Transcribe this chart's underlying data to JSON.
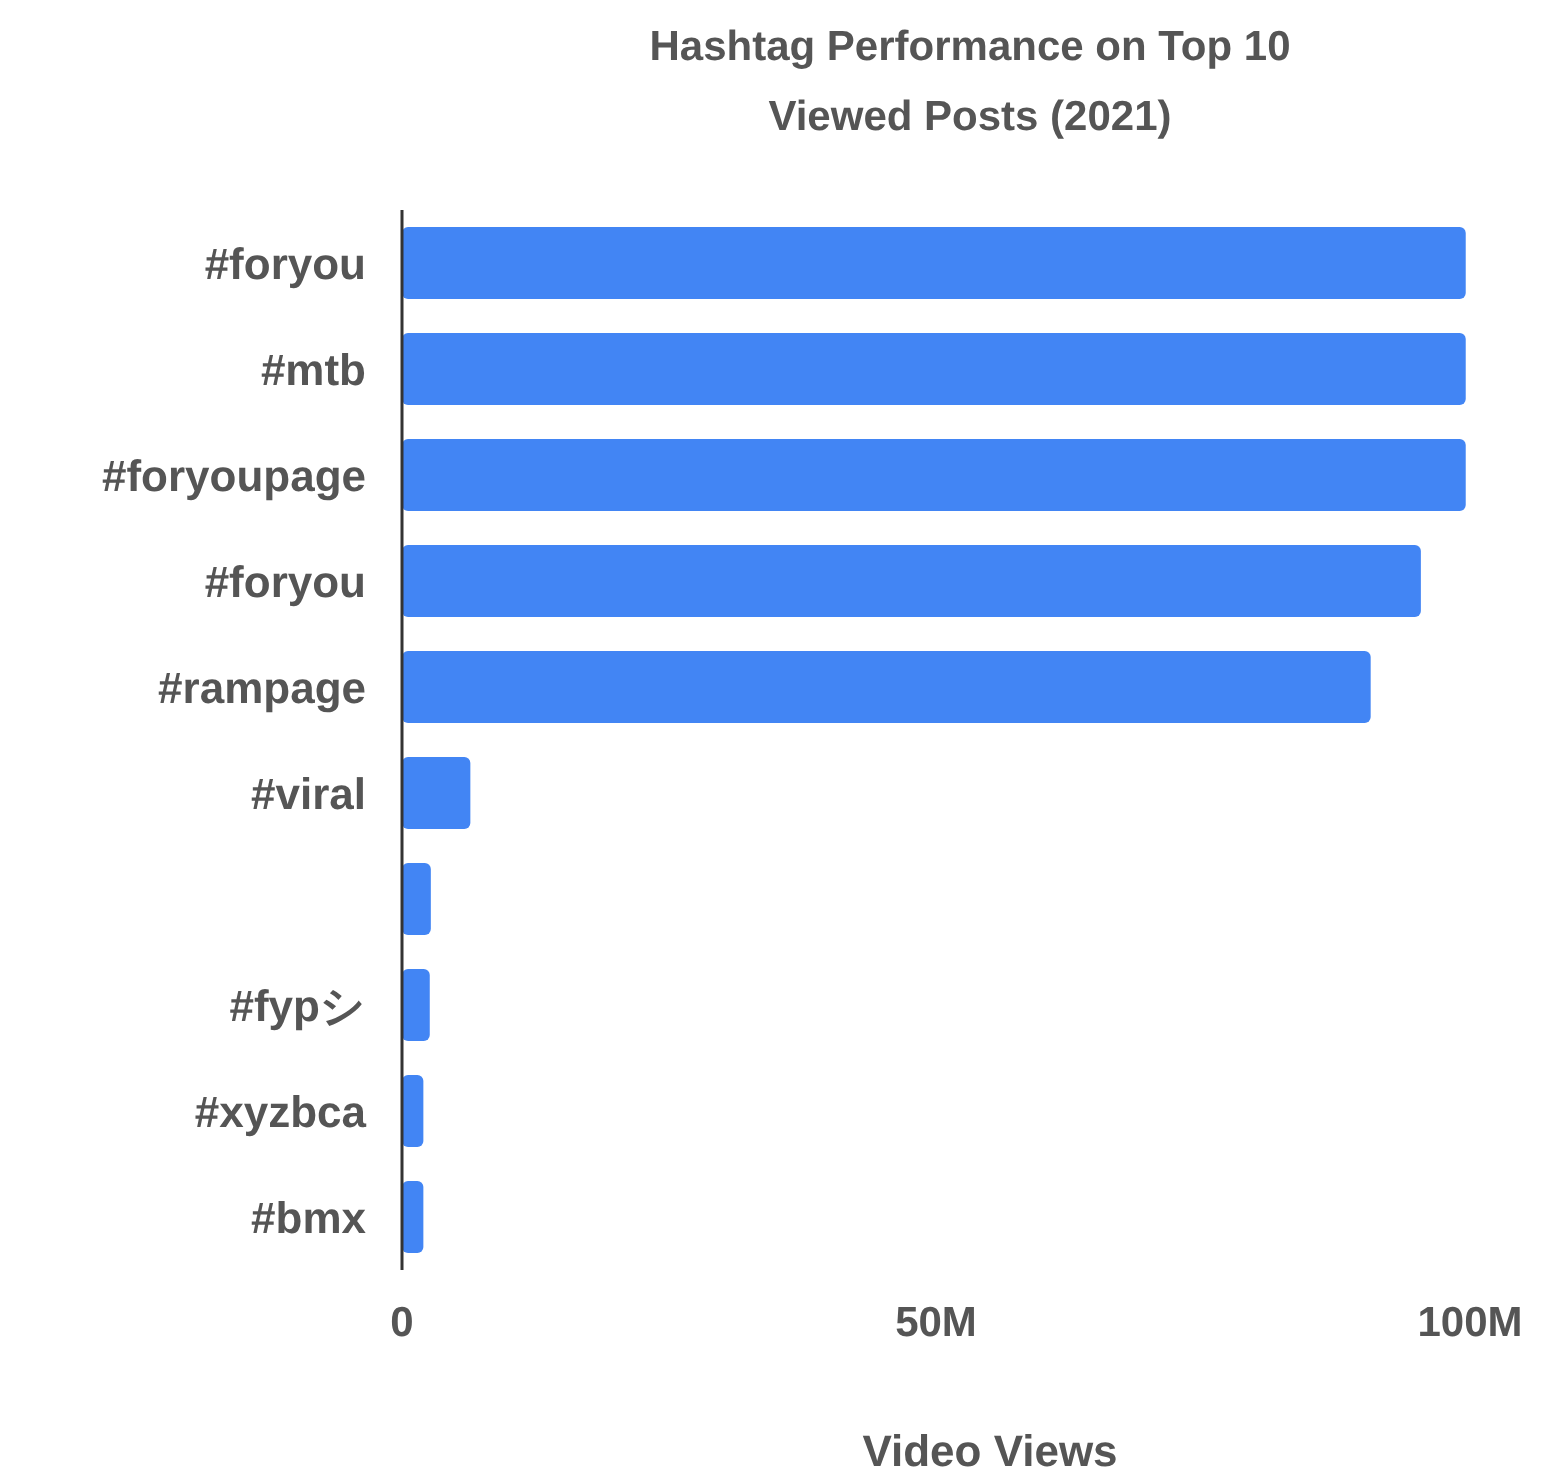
{
  "chart_data": {
    "type": "bar",
    "orientation": "horizontal",
    "title": "Hashtag Performance on Top 10 Viewed Posts (2021)",
    "xlabel": "Video Views",
    "categories": [
      "#foryou",
      "#mtb",
      "#foryoupage",
      "#foryou",
      "#rampage",
      "#viral",
      null,
      "#fypシ",
      "#xyzbca",
      "#bmx"
    ],
    "values": [
      99.6,
      99.6,
      99.6,
      95.4,
      90.7,
      6.4,
      2.7,
      2.6,
      2.0,
      2.0
    ],
    "color": "#4285f4",
    "xlim": [
      0,
      100
    ],
    "xticks": [
      0,
      {
        "value": 50,
        "label": "50M"
      },
      {
        "value": 100,
        "label": "100M"
      }
    ]
  }
}
